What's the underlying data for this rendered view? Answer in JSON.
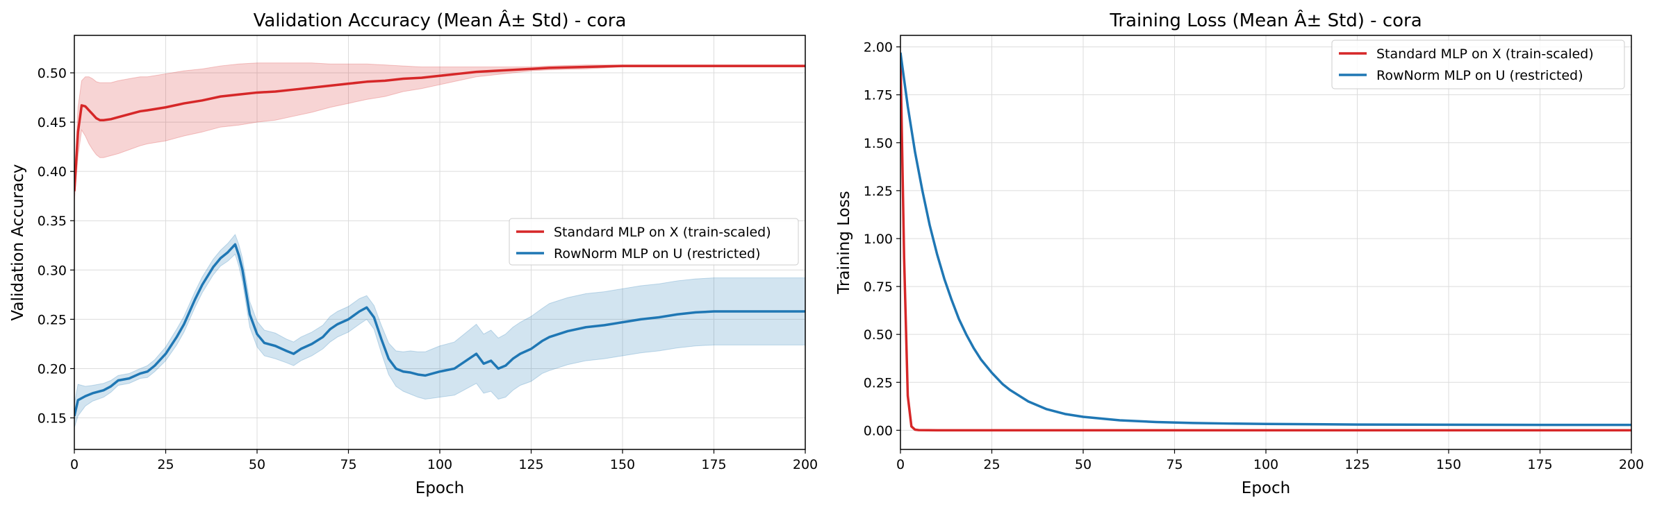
{
  "chart_data": [
    {
      "type": "line",
      "title": "Validation Accuracy (Mean Â± Std) - cora",
      "xlabel": "Epoch",
      "ylabel": "Validation Accuracy",
      "xlim": [
        0,
        200
      ],
      "ylim": [
        0.118,
        0.538
      ],
      "xticks": [
        "0",
        "25",
        "50",
        "75",
        "100",
        "125",
        "150",
        "175",
        "200"
      ],
      "yticks": [
        "0.15",
        "0.20",
        "0.25",
        "0.30",
        "0.35",
        "0.40",
        "0.45",
        "0.50"
      ],
      "grid": true,
      "legend_position": "center-right",
      "series": [
        {
          "name": "Standard MLP on X (train-scaled)",
          "color": "#d62728",
          "x": [
            0,
            1,
            2,
            3,
            4,
            5,
            6,
            7,
            8,
            10,
            12,
            15,
            18,
            20,
            25,
            30,
            35,
            40,
            45,
            50,
            55,
            60,
            65,
            70,
            75,
            80,
            85,
            90,
            95,
            100,
            105,
            110,
            115,
            120,
            125,
            130,
            140,
            150,
            160,
            170,
            180,
            190,
            200
          ],
          "mean": [
            0.38,
            0.44,
            0.467,
            0.466,
            0.462,
            0.458,
            0.454,
            0.452,
            0.452,
            0.453,
            0.455,
            0.458,
            0.461,
            0.462,
            0.465,
            0.469,
            0.472,
            0.476,
            0.478,
            0.48,
            0.481,
            0.483,
            0.485,
            0.487,
            0.489,
            0.491,
            0.492,
            0.494,
            0.495,
            0.497,
            0.499,
            0.501,
            0.502,
            0.503,
            0.504,
            0.505,
            0.506,
            0.507,
            0.507,
            0.507,
            0.507,
            0.507,
            0.507
          ],
          "std": [
            0.01,
            0.025,
            0.025,
            0.03,
            0.034,
            0.036,
            0.037,
            0.038,
            0.038,
            0.037,
            0.037,
            0.036,
            0.035,
            0.034,
            0.034,
            0.033,
            0.032,
            0.031,
            0.031,
            0.03,
            0.029,
            0.027,
            0.025,
            0.022,
            0.02,
            0.018,
            0.016,
            0.013,
            0.011,
            0.009,
            0.007,
            0.005,
            0.004,
            0.003,
            0.002,
            0.002,
            0.002,
            0.001,
            0.001,
            0.001,
            0.001,
            0.001,
            0.001
          ]
        },
        {
          "name": "RowNorm MLP on U (restricted)",
          "color": "#1f77b4",
          "x": [
            0,
            1,
            3,
            5,
            8,
            10,
            12,
            15,
            18,
            20,
            22,
            25,
            28,
            30,
            33,
            35,
            38,
            40,
            42,
            44,
            45,
            46,
            48,
            50,
            52,
            55,
            58,
            60,
            62,
            65,
            68,
            70,
            72,
            75,
            78,
            80,
            82,
            84,
            86,
            88,
            90,
            92,
            94,
            96,
            98,
            100,
            104,
            106,
            108,
            110,
            112,
            114,
            116,
            118,
            120,
            122,
            125,
            128,
            130,
            135,
            140,
            145,
            150,
            155,
            160,
            165,
            170,
            175,
            180,
            185,
            190,
            195,
            200
          ],
          "mean": [
            0.152,
            0.168,
            0.172,
            0.175,
            0.178,
            0.182,
            0.188,
            0.19,
            0.195,
            0.197,
            0.203,
            0.215,
            0.232,
            0.245,
            0.27,
            0.285,
            0.303,
            0.312,
            0.318,
            0.326,
            0.315,
            0.3,
            0.255,
            0.235,
            0.226,
            0.223,
            0.218,
            0.215,
            0.22,
            0.225,
            0.232,
            0.24,
            0.245,
            0.25,
            0.258,
            0.262,
            0.252,
            0.23,
            0.21,
            0.2,
            0.197,
            0.196,
            0.194,
            0.193,
            0.195,
            0.197,
            0.2,
            0.205,
            0.21,
            0.215,
            0.205,
            0.208,
            0.2,
            0.203,
            0.21,
            0.215,
            0.22,
            0.228,
            0.232,
            0.238,
            0.242,
            0.244,
            0.247,
            0.25,
            0.252,
            0.255,
            0.257,
            0.258,
            0.258,
            0.258,
            0.258,
            0.258,
            0.258
          ],
          "std": [
            0.012,
            0.016,
            0.01,
            0.008,
            0.007,
            0.006,
            0.005,
            0.005,
            0.005,
            0.006,
            0.006,
            0.007,
            0.008,
            0.008,
            0.008,
            0.008,
            0.008,
            0.008,
            0.009,
            0.01,
            0.011,
            0.012,
            0.013,
            0.013,
            0.013,
            0.013,
            0.012,
            0.012,
            0.012,
            0.012,
            0.012,
            0.013,
            0.013,
            0.013,
            0.013,
            0.012,
            0.012,
            0.014,
            0.016,
            0.018,
            0.02,
            0.022,
            0.023,
            0.024,
            0.025,
            0.026,
            0.027,
            0.028,
            0.029,
            0.03,
            0.03,
            0.031,
            0.031,
            0.032,
            0.032,
            0.032,
            0.033,
            0.033,
            0.034,
            0.034,
            0.034,
            0.034,
            0.034,
            0.034,
            0.034,
            0.034,
            0.034,
            0.034,
            0.034,
            0.034,
            0.034,
            0.034,
            0.034
          ]
        }
      ]
    },
    {
      "type": "line",
      "title": "Training Loss (Mean Â± Std) - cora",
      "xlabel": "Epoch",
      "ylabel": "Training Loss",
      "xlim": [
        0,
        200
      ],
      "ylim": [
        -0.1,
        2.06
      ],
      "xticks": [
        "0",
        "25",
        "50",
        "75",
        "100",
        "125",
        "150",
        "175",
        "200"
      ],
      "yticks": [
        "0.00",
        "0.25",
        "0.50",
        "0.75",
        "1.00",
        "1.25",
        "1.50",
        "1.75",
        "2.00"
      ],
      "grid": true,
      "legend_position": "top-right",
      "series": [
        {
          "name": "Standard MLP on X (train-scaled)",
          "color": "#d62728",
          "x": [
            0,
            1,
            2,
            3,
            4,
            5,
            10,
            50,
            100,
            150,
            200
          ],
          "mean": [
            1.95,
            0.9,
            0.18,
            0.02,
            0.003,
            0.001,
            0.0,
            0.0,
            0.0,
            0.0,
            0.0
          ]
        },
        {
          "name": "RowNorm MLP on U (restricted)",
          "color": "#1f77b4",
          "x": [
            0,
            2,
            4,
            6,
            8,
            10,
            12,
            14,
            16,
            18,
            20,
            22,
            25,
            28,
            30,
            35,
            40,
            45,
            50,
            60,
            70,
            80,
            90,
            100,
            125,
            150,
            175,
            200
          ],
          "mean": [
            1.97,
            1.69,
            1.45,
            1.25,
            1.07,
            0.92,
            0.79,
            0.68,
            0.58,
            0.5,
            0.43,
            0.37,
            0.3,
            0.24,
            0.21,
            0.15,
            0.11,
            0.085,
            0.07,
            0.052,
            0.043,
            0.038,
            0.035,
            0.033,
            0.03,
            0.029,
            0.028,
            0.028
          ]
        }
      ]
    }
  ]
}
